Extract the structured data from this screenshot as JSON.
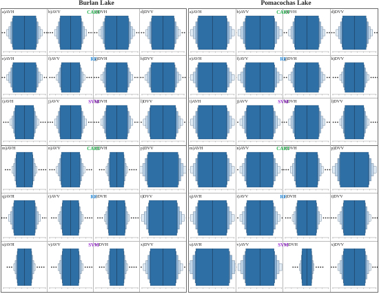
{
  "figure": {
    "column_titles": [
      "Burlan Lake",
      "Pomacochas Lake"
    ],
    "colors": {
      "box_level_1": "#2e6fa6",
      "box_level_2": "#5b8fbd",
      "box_level_3": "#8fb3d4",
      "box_level_4": "#c3d7ea",
      "box_level_5": "#e3edf6",
      "outlier": "#222222",
      "label_cart": "#21b04b",
      "label_rf": "#1f86d8",
      "label_svm": "#9a2bd1"
    },
    "model_labels": [
      {
        "key": "CART",
        "color_key": "label_cart"
      },
      {
        "key": "RF",
        "color_key": "label_rf"
      },
      {
        "key": "SVM",
        "color_key": "label_svm"
      },
      {
        "key": "CART",
        "color_key": "label_cart"
      },
      {
        "key": "RF",
        "color_key": "label_rf"
      },
      {
        "key": "SVM",
        "color_key": "label_svm"
      }
    ]
  },
  "chart_data": [
    {
      "type": "boxen",
      "lake": "Burlan Lake",
      "panels": [
        {
          "label": "a)AVH",
          "box_fraction": 0.5
        },
        {
          "label": "b)AVV",
          "box_fraction": 0.45
        },
        {
          "label": "c)DVH",
          "box_fraction": 0.5
        },
        {
          "label": "d)DVV",
          "box_fraction": 0.48
        },
        {
          "label": "e)AVH",
          "box_fraction": 0.5
        },
        {
          "label": "f)AVV",
          "box_fraction": 0.4
        },
        {
          "label": "g)DVH",
          "box_fraction": 0.45
        },
        {
          "label": "h)DVV",
          "box_fraction": 0.5
        },
        {
          "label": "i)AVH",
          "box_fraction": 0.4
        },
        {
          "label": "j)AVV",
          "box_fraction": 0.45
        },
        {
          "label": "k)DVH",
          "box_fraction": 0.45
        },
        {
          "label": "l)DVV",
          "box_fraction": 0.55
        },
        {
          "label": "m)AVH",
          "box_fraction": 0.35
        },
        {
          "label": "n)AVV",
          "box_fraction": 0.4
        },
        {
          "label": "o)DVH",
          "box_fraction": 0.3
        },
        {
          "label": "p)DVV",
          "box_fraction": 0.65
        },
        {
          "label": "q)AVH",
          "box_fraction": 0.45
        },
        {
          "label": "r)AVV",
          "box_fraction": 0.35
        },
        {
          "label": "s)DVH",
          "box_fraction": 0.35
        },
        {
          "label": "t)DVV",
          "box_fraction": 0.6
        },
        {
          "label": "u)AVH",
          "box_fraction": 0.3
        },
        {
          "label": "v)AVV",
          "box_fraction": 0.35
        },
        {
          "label": "w)DVH",
          "box_fraction": 0.3
        },
        {
          "label": "x)DVV",
          "box_fraction": 0.55
        }
      ]
    },
    {
      "type": "boxen",
      "lake": "Pomacochas Lake",
      "panels": [
        {
          "label": "a)AVH",
          "box_fraction": 0.6
        },
        {
          "label": "b)AVV",
          "box_fraction": 0.6
        },
        {
          "label": "c)DVH",
          "box_fraction": 0.5
        },
        {
          "label": "d)DVV",
          "box_fraction": 0.5
        },
        {
          "label": "e)AVH",
          "box_fraction": 0.6
        },
        {
          "label": "f)AVV",
          "box_fraction": 0.6
        },
        {
          "label": "g)DVH",
          "box_fraction": 0.5
        },
        {
          "label": "h)DVV",
          "box_fraction": 0.4
        },
        {
          "label": "i)AVH",
          "box_fraction": 0.6
        },
        {
          "label": "j)AVV",
          "box_fraction": 0.55
        },
        {
          "label": "k)DVH",
          "box_fraction": 0.5
        },
        {
          "label": "l)DVV",
          "box_fraction": 0.4
        },
        {
          "label": "m)AVH",
          "box_fraction": 0.6
        },
        {
          "label": "n)AVV",
          "box_fraction": 0.55
        },
        {
          "label": "o)DVH",
          "box_fraction": 0.45
        },
        {
          "label": "p)DVV",
          "box_fraction": 0.6
        },
        {
          "label": "q)AVH",
          "box_fraction": 0.6
        },
        {
          "label": "r)AVV",
          "box_fraction": 0.55
        },
        {
          "label": "s)DVH",
          "box_fraction": 0.4
        },
        {
          "label": "t)DVV",
          "box_fraction": 0.45
        },
        {
          "label": "u)AVH",
          "box_fraction": 0.7
        },
        {
          "label": "v)AVV",
          "box_fraction": 0.6
        },
        {
          "label": "w)DVH",
          "box_fraction": 0.2
        },
        {
          "label": "x)DVV",
          "box_fraction": 0.45
        }
      ]
    }
  ]
}
